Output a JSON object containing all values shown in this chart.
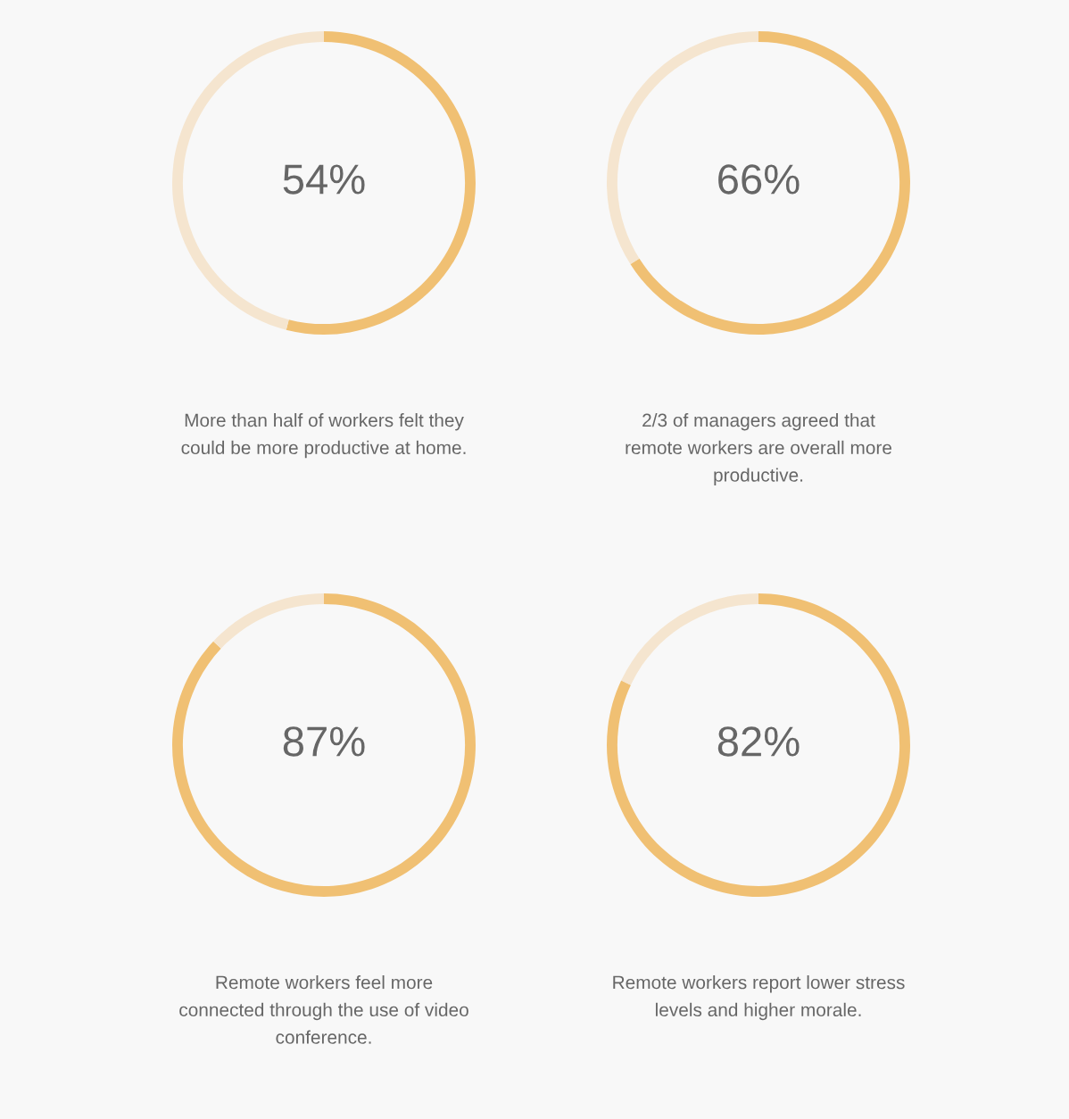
{
  "chart_data": [
    {
      "type": "donut",
      "categories": [
        null,
        null
      ],
      "values": [
        54,
        46
      ],
      "colors": [
        "#f0c073",
        "#f5e5cf"
      ],
      "annotations": [
        "54%",
        "More than half of workers felt they\ncould be more productive at home."
      ]
    },
    {
      "type": "donut",
      "categories": [
        null,
        null
      ],
      "values": [
        66,
        34
      ],
      "colors": [
        "#f0c073",
        "#f5e5cf"
      ],
      "annotations": [
        "66%",
        "2/3 of managers agreed that\nremote workers are overall more\nproductive."
      ]
    },
    {
      "type": "donut",
      "categories": [
        null,
        null
      ],
      "values": [
        87,
        13
      ],
      "colors": [
        "#f0c073",
        "#f5e5cf"
      ],
      "annotations": [
        "87%",
        "Remote workers feel more\nconnected through the use of video\nconference."
      ]
    },
    {
      "type": "donut",
      "categories": [
        null,
        null
      ],
      "values": [
        82,
        18
      ],
      "colors": [
        "#f0c073",
        "#f5e5cf"
      ],
      "annotations": [
        "82%",
        "Remote workers report lower stress\nlevels and higher morale."
      ]
    }
  ]
}
